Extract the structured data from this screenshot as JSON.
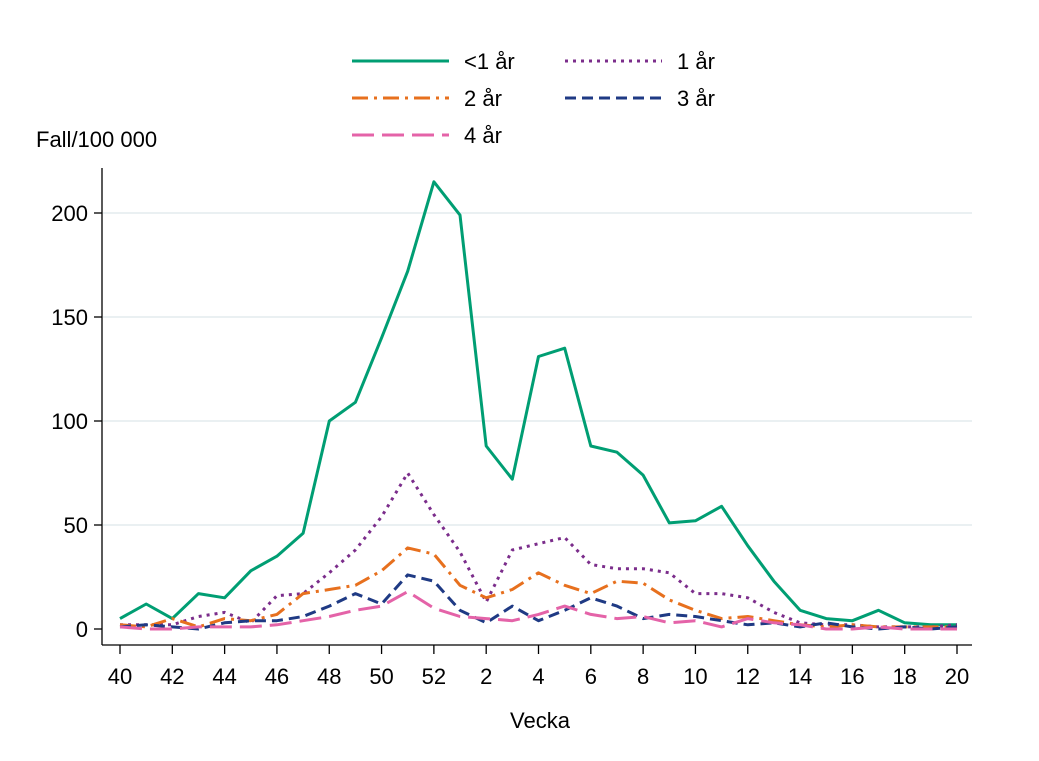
{
  "chart_data": {
    "type": "line",
    "title": "",
    "xlabel": "Vecka",
    "ylabel": "Fall/100 000",
    "ylim": [
      0,
      220
    ],
    "yticks": [
      0,
      50,
      100,
      150,
      200
    ],
    "grid": true,
    "legend_position": "top",
    "x": [
      "40",
      "41",
      "42",
      "43",
      "44",
      "45",
      "46",
      "47",
      "48",
      "49",
      "50",
      "51",
      "52",
      "1",
      "2",
      "3",
      "4",
      "5",
      "6",
      "7",
      "8",
      "9",
      "10",
      "11",
      "12",
      "13",
      "14",
      "15",
      "16",
      "17",
      "18",
      "19",
      "20"
    ],
    "xtick_labels": [
      "40",
      "42",
      "44",
      "46",
      "48",
      "50",
      "52",
      "2",
      "4",
      "6",
      "8",
      "10",
      "12",
      "14",
      "16",
      "18",
      "20"
    ],
    "series": [
      {
        "name": "<1 år",
        "color": "#009E73",
        "dash": "solid",
        "values": [
          5,
          12,
          5,
          17,
          15,
          28,
          35,
          46,
          100,
          109,
          140,
          172,
          215,
          199,
          88,
          72,
          131,
          135,
          88,
          85,
          74,
          51,
          52,
          59,
          40,
          23,
          9,
          5,
          4,
          9,
          3,
          2,
          2
        ]
      },
      {
        "name": "1 år",
        "color": "#7B2D8B",
        "dash": "dot",
        "values": [
          2,
          2,
          2,
          6,
          8,
          3,
          16,
          17,
          27,
          38,
          54,
          75,
          55,
          37,
          13,
          38,
          41,
          44,
          31,
          29,
          29,
          27,
          17,
          17,
          15,
          8,
          3,
          2,
          2,
          1,
          1,
          1,
          2
        ]
      },
      {
        "name": "2 år",
        "color": "#E7701E",
        "dash": "dashdot",
        "values": [
          2,
          1,
          5,
          1,
          5,
          4,
          7,
          17,
          19,
          21,
          28,
          39,
          36,
          21,
          15,
          19,
          27,
          21,
          17,
          23,
          22,
          14,
          9,
          5,
          6,
          4,
          2,
          1,
          2,
          1,
          1,
          1,
          1
        ]
      },
      {
        "name": "3 år",
        "color": "#1F3A84",
        "dash": "dash",
        "values": [
          1,
          2,
          1,
          0,
          3,
          4,
          4,
          6,
          11,
          17,
          12,
          26,
          23,
          9,
          3,
          11,
          4,
          9,
          15,
          11,
          5,
          7,
          6,
          4,
          2,
          3,
          1,
          3,
          1,
          0,
          1,
          0,
          1
        ]
      },
      {
        "name": "4 år",
        "color": "#E463A8",
        "dash": "longdash",
        "values": [
          1,
          0,
          0,
          1,
          1,
          1,
          2,
          4,
          6,
          9,
          11,
          18,
          10,
          6,
          5,
          4,
          7,
          11,
          7,
          5,
          6,
          3,
          4,
          1,
          5,
          3,
          2,
          0,
          0,
          1,
          0,
          0,
          0
        ]
      }
    ]
  }
}
